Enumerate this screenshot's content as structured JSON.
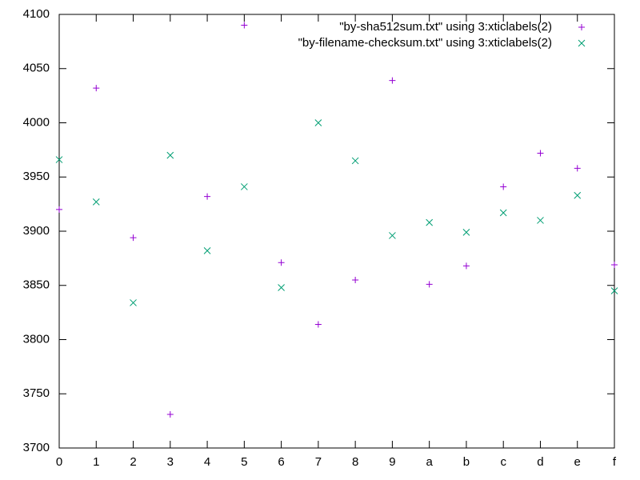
{
  "chart_data": {
    "type": "scatter",
    "categories": [
      "0",
      "1",
      "2",
      "3",
      "4",
      "5",
      "6",
      "7",
      "8",
      "9",
      "a",
      "b",
      "c",
      "d",
      "e",
      "f"
    ],
    "series": [
      {
        "name": "\"by-sha512sum.txt\" using 3:xticlabels(2)",
        "color": "#9400d3",
        "marker": "plus",
        "values": [
          3920,
          4032,
          3894,
          3731,
          3932,
          4090,
          3871,
          3814,
          3855,
          4039,
          3851,
          3868,
          3941,
          3972,
          3958,
          3869
        ]
      },
      {
        "name": "\"by-filename-checksum.txt\" using 3:xticlabels(2)",
        "color": "#009e73",
        "marker": "cross",
        "values": [
          3966,
          3927,
          3834,
          3970,
          3882,
          3941,
          3848,
          4000,
          3965,
          3896,
          3908,
          3899,
          3917,
          3910,
          3933,
          3845
        ]
      }
    ],
    "ylim": [
      3700,
      4100
    ],
    "yticks": [
      3700,
      3750,
      3800,
      3850,
      3900,
      3950,
      4000,
      4050,
      4100
    ],
    "grid": false,
    "legend": "top-right"
  }
}
